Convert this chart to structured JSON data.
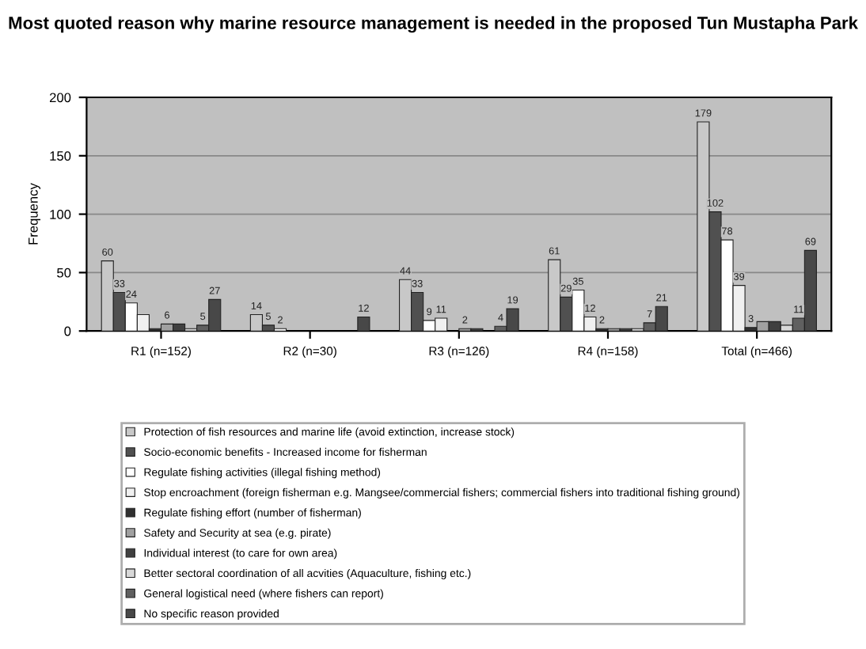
{
  "chart_data": {
    "type": "bar",
    "title": "Most quoted reason why marine resource management is needed in the proposed Tun Mustapha Park",
    "ylabel": "Frequency",
    "categories": [
      "R1 (n=152)",
      "R2 (n=30)",
      "R3 (n=126)",
      "R4 (n=158)",
      "Total (n=466)"
    ],
    "ylim": [
      0,
      200
    ],
    "yticks": [
      0,
      50,
      100,
      150,
      200
    ],
    "grid": "y",
    "legend": "bottom",
    "series": [
      {
        "name": "Protection of fish resources and marine life (avoid extinction, increase stock)",
        "color": "#c8c8c8",
        "values": [
          60,
          14,
          44,
          61,
          179
        ],
        "value_labels": [
          "60",
          "14",
          "44",
          "61",
          "179"
        ]
      },
      {
        "name": "Socio-economic benefits - Increased income for fisherman",
        "color": "#505050",
        "values": [
          33,
          5,
          33,
          29,
          102
        ],
        "value_labels": [
          "33",
          "5",
          "33",
          "29",
          "102"
        ]
      },
      {
        "name": "Regulate fishing activities (illegal fishing method)",
        "color": "#ffffff",
        "values": [
          24,
          2,
          9,
          35,
          78
        ],
        "value_labels": [
          "24",
          "2",
          "9",
          "35",
          "78"
        ]
      },
      {
        "name": "Stop encroachment (foreign fisherman e.g. Mangsee/commercial fishers; commercial fishers into traditional fishing ground)",
        "color": "#f0f0f0",
        "values": [
          14,
          null,
          11,
          12,
          39
        ],
        "value_labels": [
          null,
          null,
          "11",
          "12",
          "39"
        ]
      },
      {
        "name": "Regulate fishing effort (number of fisherman)",
        "color": "#303030",
        "values": [
          2,
          null,
          null,
          2,
          3
        ],
        "value_labels": [
          null,
          null,
          null,
          "2",
          "3"
        ]
      },
      {
        "name": "Safety and Security at sea (e.g. pirate)",
        "color": "#a0a0a0",
        "values": [
          6,
          null,
          2,
          2,
          8
        ],
        "value_labels": [
          "6",
          null,
          "2",
          null,
          null
        ]
      },
      {
        "name": "Individual interest (to care for own area)",
        "color": "#404040",
        "values": [
          6,
          null,
          2,
          2,
          8
        ],
        "value_labels": [
          null,
          null,
          null,
          null,
          null
        ]
      },
      {
        "name": "Better sectoral coordination of all acvities (Aquaculture, fishing etc.)",
        "color": "#d8d8d8",
        "values": [
          2,
          null,
          null,
          2,
          5
        ],
        "value_labels": [
          null,
          null,
          null,
          null,
          null
        ]
      },
      {
        "name": "General logistical need (where fishers can report)",
        "color": "#606060",
        "values": [
          5,
          null,
          4,
          7,
          11
        ],
        "value_labels": [
          "5",
          null,
          "4",
          "7",
          "11"
        ]
      },
      {
        "name": "No specific reason provided",
        "color": "#484848",
        "values": [
          27,
          12,
          19,
          21,
          69
        ],
        "value_labels": [
          "27",
          "12",
          "19",
          "21",
          "69"
        ]
      }
    ]
  }
}
